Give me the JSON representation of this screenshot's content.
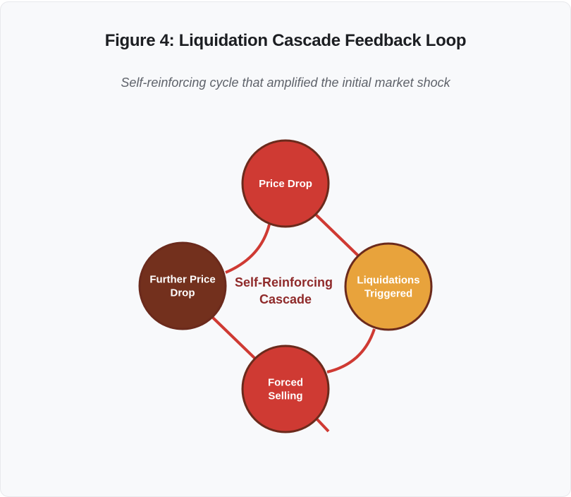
{
  "figure": {
    "title": "Figure 4: Liquidation Cascade Feedback Loop",
    "subtitle": "Self-reinforcing cycle that amplified the initial market shock",
    "center_label": [
      "Self-Reinforcing",
      "Cascade"
    ],
    "nodes": [
      {
        "id": "price-drop",
        "lines": [
          "Price Drop"
        ],
        "color": "#cf3a33"
      },
      {
        "id": "liquidations-triggered",
        "lines": [
          "Liquidations",
          "Triggered"
        ],
        "color": "#e8a33c"
      },
      {
        "id": "forced-selling",
        "lines": [
          "Forced",
          "Selling"
        ],
        "color": "#cf3a33"
      },
      {
        "id": "further-price-drop",
        "lines": [
          "Further Price",
          "Drop"
        ],
        "color": "#73301d"
      }
    ],
    "edge_color": "#cf3a33",
    "node_border_color": "#6b2a1c"
  }
}
